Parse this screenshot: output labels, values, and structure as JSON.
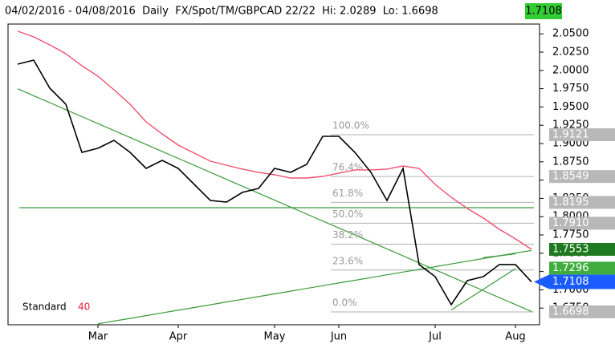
{
  "chart_data": {
    "type": "line",
    "title": "04/02/2016 - 04/08/2016  Daily  FX/Spot/TM/GBPCAD 22/22  Hi: 2.0289  Lo: 1.6698",
    "last_price": {
      "value": 1.7108,
      "label": "1.7108"
    },
    "legend": {
      "label": "Standard",
      "period": 40,
      "period_color": "#e8203c"
    },
    "categories": [
      null,
      null,
      null,
      null,
      null,
      "Mar",
      null,
      null,
      null,
      null,
      "Apr",
      null,
      null,
      null,
      null,
      null,
      "May",
      null,
      null,
      null,
      "Jun",
      null,
      null,
      null,
      null,
      null,
      "Jul",
      null,
      null,
      null,
      null,
      "Aug",
      null
    ],
    "ylim": [
      1.6522,
      2.0634
    ],
    "yticks": [
      {
        "value": 2.05,
        "label": "2.0500"
      },
      {
        "value": 2.025,
        "label": "2.0250"
      },
      {
        "value": 2.0,
        "label": "2.0000"
      },
      {
        "value": 1.975,
        "label": "1.9750"
      },
      {
        "value": 1.95,
        "label": "1.9500"
      },
      {
        "value": 1.925,
        "label": "1.9250"
      },
      {
        "value": 1.9,
        "label": "1.9000"
      },
      {
        "value": 1.875,
        "label": "1.8750"
      },
      {
        "value": 1.85,
        "label": "1.8500"
      },
      {
        "value": 1.825,
        "label": "1.8250"
      },
      {
        "value": 1.8,
        "label": "1.8000"
      },
      {
        "value": 1.775,
        "label": "1.7750"
      },
      {
        "value": 1.75,
        "label": "1.7500"
      },
      {
        "value": 1.725,
        "label": "1.7250"
      },
      {
        "value": 1.7,
        "label": "1.7000"
      },
      {
        "value": 1.675,
        "label": "1.6750"
      }
    ],
    "series": [
      {
        "color": "#000000",
        "width": 1.6,
        "values": [
          2.0086,
          2.0141,
          1.9757,
          1.9538,
          1.888,
          1.8935,
          1.9044,
          1.888,
          1.866,
          1.877,
          1.866,
          1.8441,
          1.8222,
          1.82,
          1.8332,
          1.8386,
          1.866,
          1.8606,
          1.8715,
          1.9099,
          1.9099,
          1.888,
          1.8606,
          1.8222,
          1.866,
          1.7345,
          1.718,
          1.6796,
          1.7125,
          1.718,
          1.7345,
          1.7345,
          1.7108
        ]
      },
      {
        "color": "#f0506e",
        "width": 1.4,
        "values": [
          2.0536,
          2.0459,
          2.0349,
          2.0228,
          2.0064,
          1.9921,
          1.9735,
          1.9538,
          1.9296,
          1.9132,
          1.8978,
          1.8869,
          1.8759,
          1.8704,
          1.865,
          1.8606,
          1.8573,
          1.8529,
          1.8529,
          1.8551,
          1.8595,
          1.8639,
          1.8639,
          1.865,
          1.8693,
          1.866,
          1.8441,
          1.8266,
          1.8112,
          1.7981,
          1.7827,
          1.7696,
          1.7553
        ]
      },
      {
        "color": "#3a9a3a",
        "width": 1.2,
        "values": [
          1.9749,
          1.9654,
          1.9559,
          1.9463,
          1.9368,
          1.9273,
          1.9178,
          1.9083,
          1.8987,
          1.8892,
          1.8797,
          1.8702,
          1.8607,
          1.8511,
          1.8416,
          1.8321,
          1.8226,
          1.8131,
          1.8035,
          1.794,
          1.7845,
          1.775,
          1.7655,
          1.7559,
          1.7464,
          1.7369,
          1.7274,
          1.7179,
          1.7083,
          1.6988,
          1.6893,
          1.6798,
          1.6702
        ]
      },
      {
        "color": "#3a9a3a",
        "width": 1.2,
        "values": [
          null,
          null,
          null,
          null,
          null,
          1.6535,
          1.6572,
          1.6609,
          1.6647,
          1.6684,
          1.6721,
          1.6758,
          1.6795,
          1.6833,
          1.687,
          1.6907,
          1.6944,
          1.6981,
          1.7019,
          1.7056,
          1.7093,
          1.713,
          1.7167,
          1.7205,
          1.7242,
          1.7279,
          1.7316,
          1.7353,
          1.7391,
          1.7428,
          1.7465,
          1.7502,
          1.7539
        ]
      },
      {
        "color": "#3a9a3a",
        "width": 1.2,
        "values": [
          null,
          null,
          null,
          null,
          null,
          null,
          null,
          null,
          null,
          null,
          null,
          null,
          null,
          null,
          null,
          null,
          null,
          null,
          null,
          null,
          null,
          null,
          null,
          null,
          null,
          null,
          null,
          1.6724,
          1.6866,
          1.7007,
          1.7148,
          1.729,
          null
        ]
      },
      {
        "color": "#3a9a3a",
        "width": 1.2,
        "values": [
          null,
          null,
          null,
          null,
          null,
          null,
          null,
          null,
          null,
          null,
          null,
          null,
          null,
          null,
          null,
          null,
          null,
          null,
          null,
          null,
          null,
          null,
          null,
          null,
          null,
          null,
          null,
          null,
          null,
          1.7441,
          1.7465,
          1.7492,
          null
        ]
      }
    ],
    "hline": {
      "value": 1.8123,
      "color": "#3a9a3a"
    },
    "fib": {
      "color": "#b0b0b0",
      "values": [
        1.9121,
        1.8549,
        1.8195,
        1.791,
        1.7624,
        1.727,
        1.6698
      ],
      "labels": [
        "100.0%",
        "76.4%",
        "61.8%",
        "50.0%",
        "38.2%",
        "23.6%",
        "0.0%"
      ]
    },
    "price_markers": [
      {
        "value": 1.9121,
        "label": "1.9121",
        "color": "#b8b8b8"
      },
      {
        "value": 1.8549,
        "label": "1.8549",
        "color": "#b8b8b8"
      },
      {
        "value": 1.8195,
        "label": "1.8195",
        "color": "#b8b8b8"
      },
      {
        "value": 1.791,
        "label": "1.7910",
        "color": "#b8b8b8"
      },
      {
        "value": 1.7553,
        "label": "1.7553",
        "color": "#1f7a1f"
      },
      {
        "value": 1.7296,
        "label": "1.7296",
        "color": "#3fae3f"
      },
      {
        "value": 1.6698,
        "label": "1.6698",
        "color": "#b8b8b8"
      }
    ],
    "last_price_color": "#1a5cff",
    "header_box_color": "#33cc33"
  }
}
